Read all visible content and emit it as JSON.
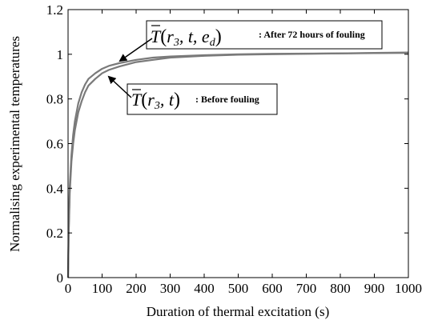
{
  "chart_data": {
    "type": "line",
    "xlabel": "Duration of thermal excitation (s)",
    "ylabel": "Normalising experimental temperatures",
    "xlim": [
      0,
      1000
    ],
    "ylim": [
      0,
      1.2
    ],
    "xticks": [
      "0",
      "100",
      "200",
      "300",
      "400",
      "500",
      "600",
      "700",
      "800",
      "900",
      "1000"
    ],
    "yticks": [
      "0",
      "0.2",
      "0.4",
      "0.6",
      "0.8",
      "1",
      "1.2"
    ],
    "grid": false,
    "series_color": "#7a7a7a",
    "series": [
      {
        "x": [
          0,
          2,
          5,
          10,
          15,
          20,
          30,
          40,
          50,
          60,
          80,
          100,
          120,
          150,
          200,
          250,
          300,
          400,
          500,
          600,
          700,
          800,
          900,
          1000
        ],
        "y": [
          0,
          0.2,
          0.38,
          0.52,
          0.6,
          0.66,
          0.74,
          0.79,
          0.83,
          0.86,
          0.89,
          0.915,
          0.93,
          0.945,
          0.965,
          0.975,
          0.985,
          0.993,
          0.998,
          1.0,
          1.002,
          1.004,
          1.006,
          1.008
        ]
      },
      {
        "x": [
          0,
          2,
          5,
          10,
          15,
          20,
          30,
          40,
          50,
          60,
          80,
          100,
          120,
          150,
          200,
          250,
          300,
          400,
          500,
          600,
          700,
          800,
          900,
          1000
        ],
        "y": [
          0,
          0.22,
          0.41,
          0.55,
          0.64,
          0.7,
          0.78,
          0.83,
          0.865,
          0.89,
          0.915,
          0.935,
          0.948,
          0.96,
          0.975,
          0.985,
          0.99,
          0.996,
          1.0,
          1.002,
          1.003,
          1.004,
          1.005,
          1.006
        ]
      }
    ],
    "annotations": [
      {
        "label_math": [
          "T",
          "(",
          "r",
          "3",
          ", t, e",
          "d",
          ")"
        ],
        "text": ": After 72 hours of fouling"
      },
      {
        "label_math": [
          "T",
          "(",
          "r",
          "3",
          ", t",
          ")"
        ],
        "text": ": Before fouling"
      }
    ]
  }
}
